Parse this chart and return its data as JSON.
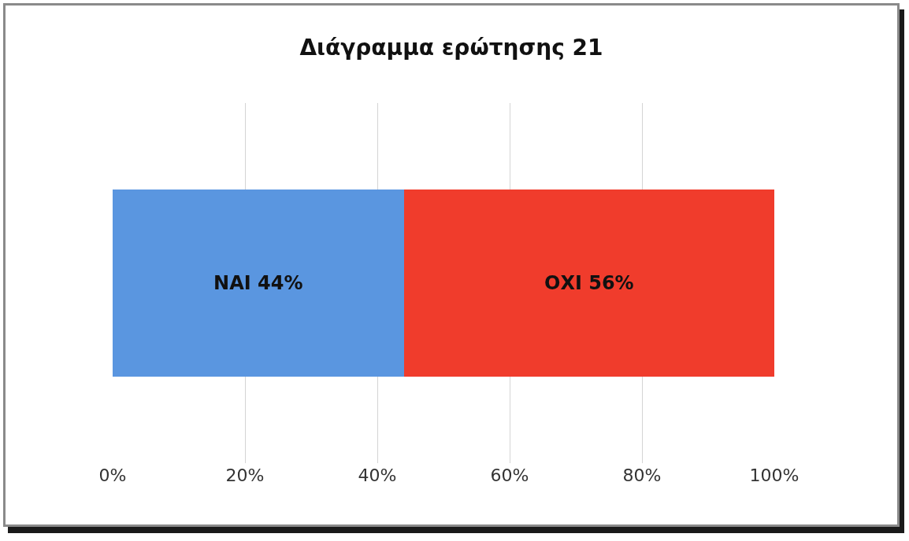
{
  "chart_data": {
    "type": "bar",
    "title": "Διάγραμμα ερώτησης 21",
    "orientation": "horizontal",
    "stacked": true,
    "categories": [
      null
    ],
    "series": [
      {
        "name": "ΝΑΙ",
        "color": "#5a96e0",
        "values": [
          44
        ],
        "value_labels": [
          "44%"
        ]
      },
      {
        "name": "ΟΧΙ",
        "color": "#f03c2c",
        "values": [
          56
        ],
        "value_labels": [
          "56%"
        ]
      }
    ],
    "xlim": [
      0,
      100
    ],
    "xticks": [
      {
        "value": 0,
        "label": "0%"
      },
      {
        "value": 20,
        "label": "20%"
      },
      {
        "value": 40,
        "label": "40%"
      },
      {
        "value": 60,
        "label": "60%"
      },
      {
        "value": 80,
        "label": "80%"
      },
      {
        "value": 100,
        "label": "100%"
      }
    ],
    "grid": "x",
    "tick_labels": "x"
  }
}
